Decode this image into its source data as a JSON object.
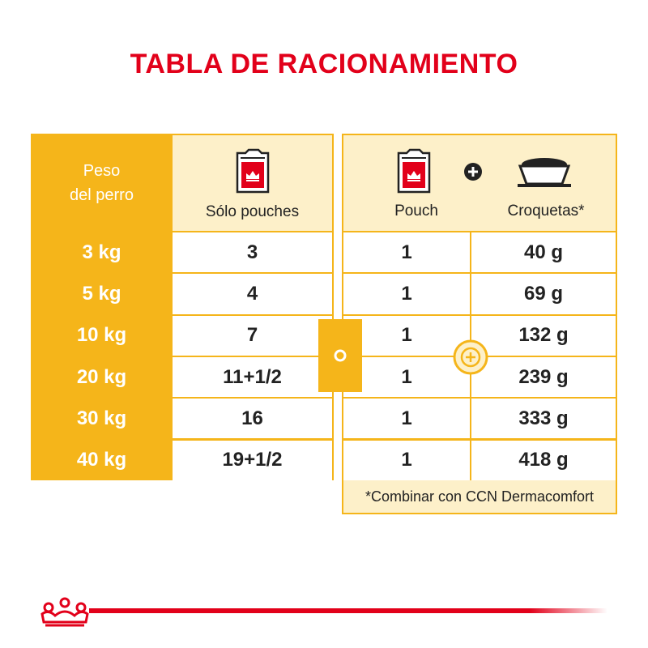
{
  "title": "TABLA DE RACIONAMIENTO",
  "colors": {
    "accent": "#f5b51a",
    "brand": "#e2001a",
    "header_bg": "#fdf0c9"
  },
  "left_table": {
    "header_weight": "Peso\ndel perro",
    "header_pouches": "Sólo pouches",
    "rows": [
      {
        "weight": "3 kg",
        "pouches": "3"
      },
      {
        "weight": "5 kg",
        "pouches": "4"
      },
      {
        "weight": "10 kg",
        "pouches": "7"
      },
      {
        "weight": "20 kg",
        "pouches": "11+1/2"
      },
      {
        "weight": "30 kg",
        "pouches": "16"
      },
      {
        "weight": "40 kg",
        "pouches": "19+1/2"
      }
    ]
  },
  "right_table": {
    "header_pouch": "Pouch",
    "header_kibble": "Croquetas*",
    "rows": [
      {
        "pouch": "1",
        "kibble": "40 g"
      },
      {
        "pouch": "1",
        "kibble": "69 g"
      },
      {
        "pouch": "1",
        "kibble": "132 g"
      },
      {
        "pouch": "1",
        "kibble": "239 g"
      },
      {
        "pouch": "1",
        "kibble": "333 g"
      },
      {
        "pouch": "1",
        "kibble": "418 g"
      }
    ],
    "footnote": "*Combinar con CCN Dermacomfort"
  },
  "icons": [
    "pouch-icon",
    "plus-icon",
    "kibble-bowl-icon",
    "or-circle-icon",
    "royal-canin-crown-logo"
  ]
}
